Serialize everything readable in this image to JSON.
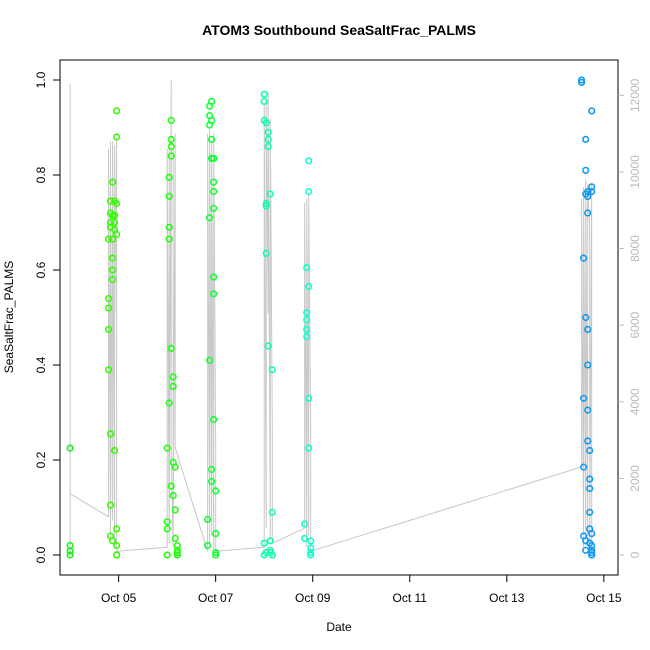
{
  "chart_data": {
    "type": "scatter",
    "title": "ATOM3 Southbound SeaSaltFrac_PALMS",
    "xlabel": "Date",
    "ylabel": "SeaSaltFrac_PALMS",
    "x_unit": "days",
    "xlim": [
      "Oct 03 19:00",
      "Oct 15 07:00"
    ],
    "ylim": [
      0,
      1
    ],
    "x_ticks": [
      {
        "label": "Oct 05",
        "value": "Oct 05"
      },
      {
        "label": "Oct 07",
        "value": "Oct 07"
      },
      {
        "label": "Oct 09",
        "value": "Oct 09"
      },
      {
        "label": "Oct 11",
        "value": "Oct 11"
      },
      {
        "label": "Oct 13",
        "value": "Oct 13"
      },
      {
        "label": "Oct 15",
        "value": "Oct 15"
      }
    ],
    "y_ticks": [
      "0.0",
      "0.2",
      "0.4",
      "0.6",
      "0.8",
      "1.0"
    ],
    "y2_ticks": [
      "0",
      "2000",
      "4000",
      "6000",
      "8000",
      "10000",
      "12000"
    ],
    "y2lim": [
      0,
      12400
    ],
    "grid": false,
    "marker": "open-circle",
    "color_scale": "flight sequence: green to cyan to blue",
    "secondary_series_color": "#c8c8c8",
    "series": [
      {
        "color": "#22ee22",
        "x": [
          "Oct 04 00:00",
          "Oct 04 00:00",
          "Oct 04 00:00",
          "Oct 04 00:00"
        ],
        "y": [
          0.225,
          0.02,
          0.008,
          0.0
        ]
      },
      {
        "color": "#33ff00",
        "x": [
          "Oct 04 19:00",
          "Oct 04 19:00",
          "Oct 04 19:00",
          "Oct 04 19:00",
          "Oct 04 19:00",
          "Oct 04 20:00",
          "Oct 04 20:00",
          "Oct 04 20:00",
          "Oct 04 20:00",
          "Oct 04 20:00",
          "Oct 04 20:00",
          "Oct 04 20:00",
          "Oct 04 21:00",
          "Oct 04 21:00",
          "Oct 04 21:00",
          "Oct 04 21:00",
          "Oct 04 21:00",
          "Oct 04 21:00",
          "Oct 04 21:00",
          "Oct 04 22:00",
          "Oct 04 22:00",
          "Oct 04 22:00",
          "Oct 04 22:00",
          "Oct 04 22:00",
          "Oct 04 23:00",
          "Oct 04 23:00",
          "Oct 04 23:00",
          "Oct 04 23:00",
          "Oct 04 23:00",
          "Oct 04 23:00",
          "Oct 04 23:00"
        ],
        "y": [
          0.54,
          0.52,
          0.475,
          0.39,
          0.665,
          0.745,
          0.72,
          0.7,
          0.69,
          0.255,
          0.105,
          0.04,
          0.785,
          0.715,
          0.665,
          0.625,
          0.6,
          0.58,
          0.03,
          0.745,
          0.715,
          0.7,
          0.685,
          0.22,
          0.935,
          0.88,
          0.74,
          0.675,
          0.055,
          0.02,
          0.0
        ]
      },
      {
        "color": "#22ff11",
        "x": [
          "Oct 06 00:00",
          "Oct 06 00:00",
          "Oct 06 00:00",
          "Oct 06 00:00",
          "Oct 06 01:00",
          "Oct 06 01:00",
          "Oct 06 01:00",
          "Oct 06 01:00",
          "Oct 06 01:00",
          "Oct 06 02:00",
          "Oct 06 02:00",
          "Oct 06 02:00",
          "Oct 06 02:00",
          "Oct 06 02:00",
          "Oct 06 02:00",
          "Oct 06 03:00",
          "Oct 06 03:00",
          "Oct 06 03:00",
          "Oct 06 03:00",
          "Oct 06 04:00",
          "Oct 06 04:00",
          "Oct 06 04:00",
          "Oct 06 05:00",
          "Oct 06 05:00",
          "Oct 06 05:00",
          "Oct 06 05:00",
          "Oct 06 05:00"
        ],
        "y": [
          0.225,
          0.07,
          0.055,
          0.0,
          0.795,
          0.755,
          0.69,
          0.665,
          0.32,
          0.915,
          0.875,
          0.86,
          0.84,
          0.435,
          0.145,
          0.375,
          0.355,
          0.195,
          0.125,
          0.185,
          0.095,
          0.035,
          0.0,
          0.02,
          0.01,
          0.005,
          0.0
        ]
      },
      {
        "color": "#11ff33",
        "x": [
          "Oct 06 20:00",
          "Oct 06 20:00",
          "Oct 06 21:00",
          "Oct 06 21:00",
          "Oct 06 21:00",
          "Oct 06 21:00",
          "Oct 06 21:00",
          "Oct 06 22:00",
          "Oct 06 22:00",
          "Oct 06 22:00",
          "Oct 06 22:00",
          "Oct 06 22:00",
          "Oct 06 22:00",
          "Oct 06 23:00",
          "Oct 06 23:00",
          "Oct 06 23:00",
          "Oct 06 23:00",
          "Oct 06 23:00",
          "Oct 06 23:00",
          "Oct 06 23:00",
          "Oct 07 00:00",
          "Oct 07 00:00",
          "Oct 07 00:00",
          "Oct 07 00:00"
        ],
        "y": [
          0.075,
          0.02,
          0.945,
          0.925,
          0.905,
          0.71,
          0.41,
          0.955,
          0.915,
          0.875,
          0.835,
          0.18,
          0.155,
          0.835,
          0.785,
          0.765,
          0.73,
          0.585,
          0.55,
          0.285,
          0.135,
          0.045,
          0.005,
          0.0
        ]
      },
      {
        "color": "#11ffaa",
        "x": [
          "Oct 08 00:00",
          "Oct 08 00:00",
          "Oct 08 00:00",
          "Oct 08 00:00",
          "Oct 08 00:00",
          "Oct 08 01:00",
          "Oct 08 01:00",
          "Oct 08 01:00",
          "Oct 08 01:00",
          "Oct 08 01:00",
          "Oct 08 02:00",
          "Oct 08 02:00",
          "Oct 08 02:00",
          "Oct 08 02:00",
          "Oct 08 03:00",
          "Oct 08 03:00",
          "Oct 08 03:00",
          "Oct 08 03:00",
          "Oct 08 04:00",
          "Oct 08 04:00",
          "Oct 08 04:00"
        ],
        "y": [
          0.97,
          0.955,
          0.915,
          0.025,
          0.0,
          0.91,
          0.74,
          0.735,
          0.635,
          0.005,
          0.89,
          0.875,
          0.86,
          0.44,
          0.76,
          0.03,
          0.01,
          0.005,
          0.39,
          0.09,
          0.0
        ]
      },
      {
        "color": "#11ffcc",
        "x": [
          "Oct 08 20:00",
          "Oct 08 20:00",
          "Oct 08 21:00",
          "Oct 08 21:00",
          "Oct 08 21:00",
          "Oct 08 21:00",
          "Oct 08 21:00",
          "Oct 08 22:00",
          "Oct 08 22:00",
          "Oct 08 22:00",
          "Oct 08 22:00",
          "Oct 08 22:00",
          "Oct 08 23:00",
          "Oct 08 23:00",
          "Oct 08 23:00",
          "Oct 08 23:00"
        ],
        "y": [
          0.065,
          0.035,
          0.605,
          0.51,
          0.495,
          0.475,
          0.46,
          0.83,
          0.765,
          0.565,
          0.33,
          0.225,
          0.03,
          0.015,
          0.005,
          0.0
        ]
      },
      {
        "color": "#1199ee",
        "x": [
          "Oct 14 13:00",
          "Oct 14 13:00",
          "Oct 14 14:00",
          "Oct 14 14:00",
          "Oct 14 14:00",
          "Oct 14 14:00",
          "Oct 14 15:00",
          "Oct 14 15:00",
          "Oct 14 15:00",
          "Oct 14 15:00",
          "Oct 14 15:00",
          "Oct 14 15:00",
          "Oct 14 16:00",
          "Oct 14 16:00",
          "Oct 14 16:00",
          "Oct 14 16:00",
          "Oct 14 16:00",
          "Oct 14 16:00",
          "Oct 14 16:00",
          "Oct 14 17:00",
          "Oct 14 17:00",
          "Oct 14 17:00",
          "Oct 14 17:00",
          "Oct 14 17:00",
          "Oct 14 17:00",
          "Oct 14 18:00",
          "Oct 14 18:00",
          "Oct 14 18:00",
          "Oct 14 18:00",
          "Oct 14 18:00",
          "Oct 14 18:00",
          "Oct 14 18:00",
          "Oct 14 18:00",
          "Oct 14 18:00"
        ],
        "y": [
          1.0,
          0.995,
          0.625,
          0.33,
          0.185,
          0.04,
          0.875,
          0.81,
          0.76,
          0.5,
          0.03,
          0.01,
          0.765,
          0.755,
          0.72,
          0.475,
          0.4,
          0.305,
          0.24,
          0.22,
          0.16,
          0.14,
          0.09,
          0.055,
          0.025,
          0.935,
          0.775,
          0.765,
          0.045,
          0.02,
          0.01,
          0.005,
          0.0,
          0.0
        ]
      }
    ],
    "secondary_series": {
      "y_axis": "right",
      "x": [
        "Oct 04 00:00",
        "Oct 04 00:00",
        "Oct 04 00:00",
        "Oct 04 00:00",
        "Oct 04 19:00",
        "Oct 04 19:00",
        "Oct 04 20:00",
        "Oct 04 20:00",
        "Oct 04 20:00",
        "Oct 04 21:00",
        "Oct 04 21:00",
        "Oct 04 21:00",
        "Oct 04 22:00",
        "Oct 04 22:00",
        "Oct 04 22:00",
        "Oct 04 23:00",
        "Oct 04 23:00",
        "Oct 06 00:00",
        "Oct 06 00:00",
        "Oct 06 01:00",
        "Oct 06 01:00",
        "Oct 06 01:00",
        "Oct 06 02:00",
        "Oct 06 02:00",
        "Oct 06 03:00",
        "Oct 06 03:00",
        "Oct 06 03:00",
        "Oct 06 04:00",
        "Oct 06 04:00",
        "Oct 06 20:00",
        "Oct 06 20:00",
        "Oct 06 21:00",
        "Oct 06 21:00",
        "Oct 06 22:00",
        "Oct 06 22:00",
        "Oct 06 23:00",
        "Oct 06 23:00",
        "Oct 07 00:00",
        "Oct 07 00:00",
        "Oct 08 00:00",
        "Oct 08 00:00",
        "Oct 08 01:00",
        "Oct 08 01:00",
        "Oct 08 02:00",
        "Oct 08 02:00",
        "Oct 08 03:00",
        "Oct 08 03:00",
        "Oct 08 04:00",
        "Oct 08 04:00",
        "Oct 08 20:00",
        "Oct 08 20:00",
        "Oct 08 21:00",
        "Oct 08 21:00",
        "Oct 08 22:00",
        "Oct 08 22:00",
        "Oct 08 23:00",
        "Oct 08 23:00",
        "Oct 14 13:00",
        "Oct 14 13:00",
        "Oct 14 14:00",
        "Oct 14 14:00",
        "Oct 14 15:00",
        "Oct 14 15:00",
        "Oct 14 16:00",
        "Oct 14 16:00",
        "Oct 14 17:00",
        "Oct 14 17:00",
        "Oct 14 18:00",
        "Oct 14 18:00"
      ],
      "y": [
        0,
        12300,
        6000,
        1600,
        1000,
        10600,
        600,
        10800,
        400,
        10700,
        900,
        10800,
        300,
        10700,
        6000,
        10900,
        100,
        200,
        10600,
        300,
        10800,
        500,
        12400,
        2700,
        200,
        10600,
        800,
        11000,
        2800,
        100,
        11000,
        300,
        11100,
        500,
        10800,
        100,
        11000,
        2700,
        100,
        200,
        11800,
        700,
        11900,
        6300,
        12100,
        400,
        11400,
        3300,
        300,
        700,
        9200,
        200,
        9300,
        500,
        9400,
        3300,
        100,
        2300,
        9300,
        200,
        9600,
        400,
        9800,
        300,
        9700,
        8500,
        200,
        9700,
        100
      ]
    }
  }
}
